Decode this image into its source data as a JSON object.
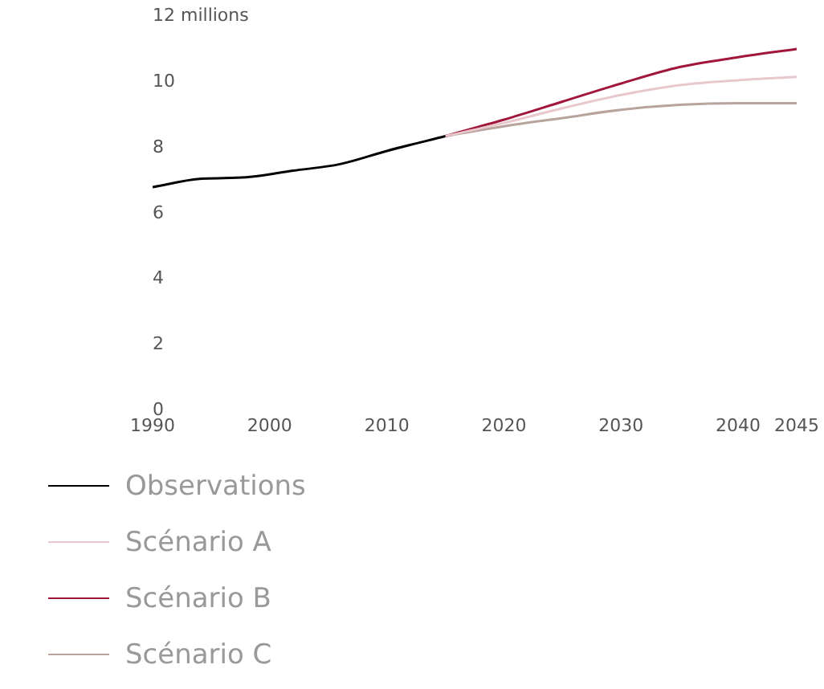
{
  "chart_data": {
    "type": "line",
    "x": [
      1990,
      1994,
      1998,
      2002,
      2006,
      2010,
      2015
    ],
    "xlim": [
      1990,
      2045
    ],
    "xticks": [
      1990,
      2000,
      2010,
      2020,
      2030,
      2040,
      2045
    ],
    "ylim": [
      0,
      12
    ],
    "yticks": [
      0,
      2,
      4,
      6,
      8,
      10,
      {
        "value": 12,
        "label": "12 millions"
      }
    ],
    "grid": false,
    "legend": "bottom",
    "marker": "none",
    "line_style": "solid",
    "series": [
      {
        "name": "Observations",
        "color": "#000000",
        "values": [
          6.8,
          7.05,
          7.1,
          7.3,
          7.5,
          7.9,
          8.35
        ]
      },
      {
        "name": "Scénario A",
        "color": "#e8c8cc",
        "x": [
          2015,
          2020,
          2025,
          2030,
          2035,
          2040,
          2045
        ],
        "values": [
          8.35,
          8.75,
          9.2,
          9.6,
          9.9,
          10.05,
          10.15
        ]
      },
      {
        "name": "Scénario B",
        "color": "#a0173a",
        "x": [
          2015,
          2020,
          2025,
          2030,
          2035,
          2040,
          2045
        ],
        "values": [
          8.35,
          8.85,
          9.4,
          9.95,
          10.45,
          10.75,
          11.0
        ]
      },
      {
        "name": "Scénario C",
        "color": "#b8a49c",
        "x": [
          2015,
          2020,
          2025,
          2030,
          2035,
          2040,
          2045
        ],
        "values": [
          8.35,
          8.65,
          8.9,
          9.15,
          9.3,
          9.35,
          9.35
        ]
      }
    ]
  }
}
